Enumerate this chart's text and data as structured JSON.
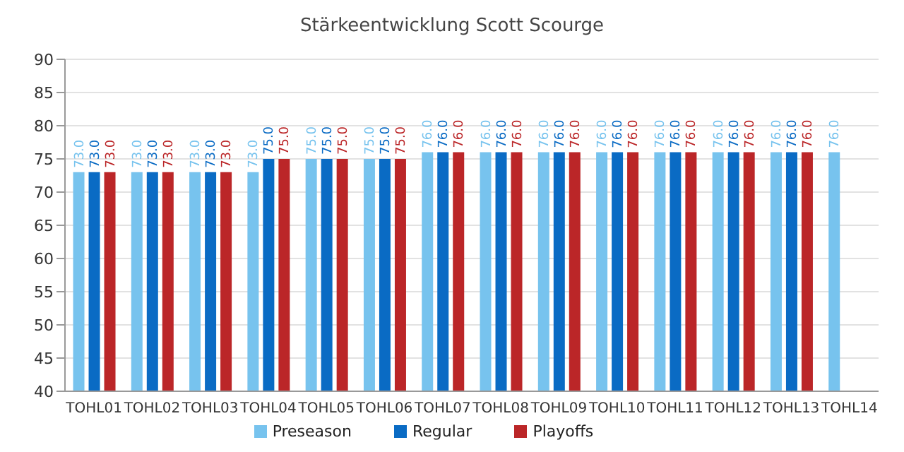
{
  "chart_data": {
    "type": "bar",
    "title": "Stärkeentwicklung Scott Scourge",
    "categories": [
      "TOHL01",
      "TOHL02",
      "TOHL03",
      "TOHL04",
      "TOHL05",
      "TOHL06",
      "TOHL07",
      "TOHL08",
      "TOHL09",
      "TOHL10",
      "TOHL11",
      "TOHL12",
      "TOHL13",
      "TOHL14"
    ],
    "series": [
      {
        "name": "Preseason",
        "color": "#77c3ee",
        "values": [
          73,
          73,
          73,
          73,
          75,
          75,
          76,
          76,
          76,
          76,
          76,
          76,
          76,
          76
        ],
        "value_labels": [
          "73.0",
          "73.0",
          "73.0",
          "73.0",
          "75.0",
          "75.0",
          "76.0",
          "76.0",
          "76.0",
          "76.0",
          "76.0",
          "76.0",
          "76.0",
          "76.0"
        ]
      },
      {
        "name": "Regular",
        "color": "#0a6bc4",
        "values": [
          73,
          73,
          73,
          75,
          75,
          75,
          76,
          76,
          76,
          76,
          76,
          76,
          76,
          null
        ],
        "value_labels": [
          "73.0",
          "73.0",
          "73.0",
          "75.0",
          "75.0",
          "75.0",
          "76.0",
          "76.0",
          "76.0",
          "76.0",
          "76.0",
          "76.0",
          "76.0",
          null
        ]
      },
      {
        "name": "Playoffs",
        "color": "#bb2628",
        "values": [
          73,
          73,
          73,
          75,
          75,
          75,
          76,
          76,
          76,
          76,
          76,
          76,
          76,
          null
        ],
        "value_labels": [
          "73.0",
          "73.0",
          "73.0",
          "75.0",
          "75.0",
          "75.0",
          "76.0",
          "76.0",
          "76.0",
          "76.0",
          "76.0",
          "76.0",
          "76.0",
          null
        ]
      }
    ],
    "ylim": [
      40,
      90
    ],
    "yticks": [
      40,
      45,
      50,
      55,
      60,
      65,
      70,
      75,
      80,
      85,
      90
    ],
    "grid": "y",
    "legend": "bottom"
  }
}
